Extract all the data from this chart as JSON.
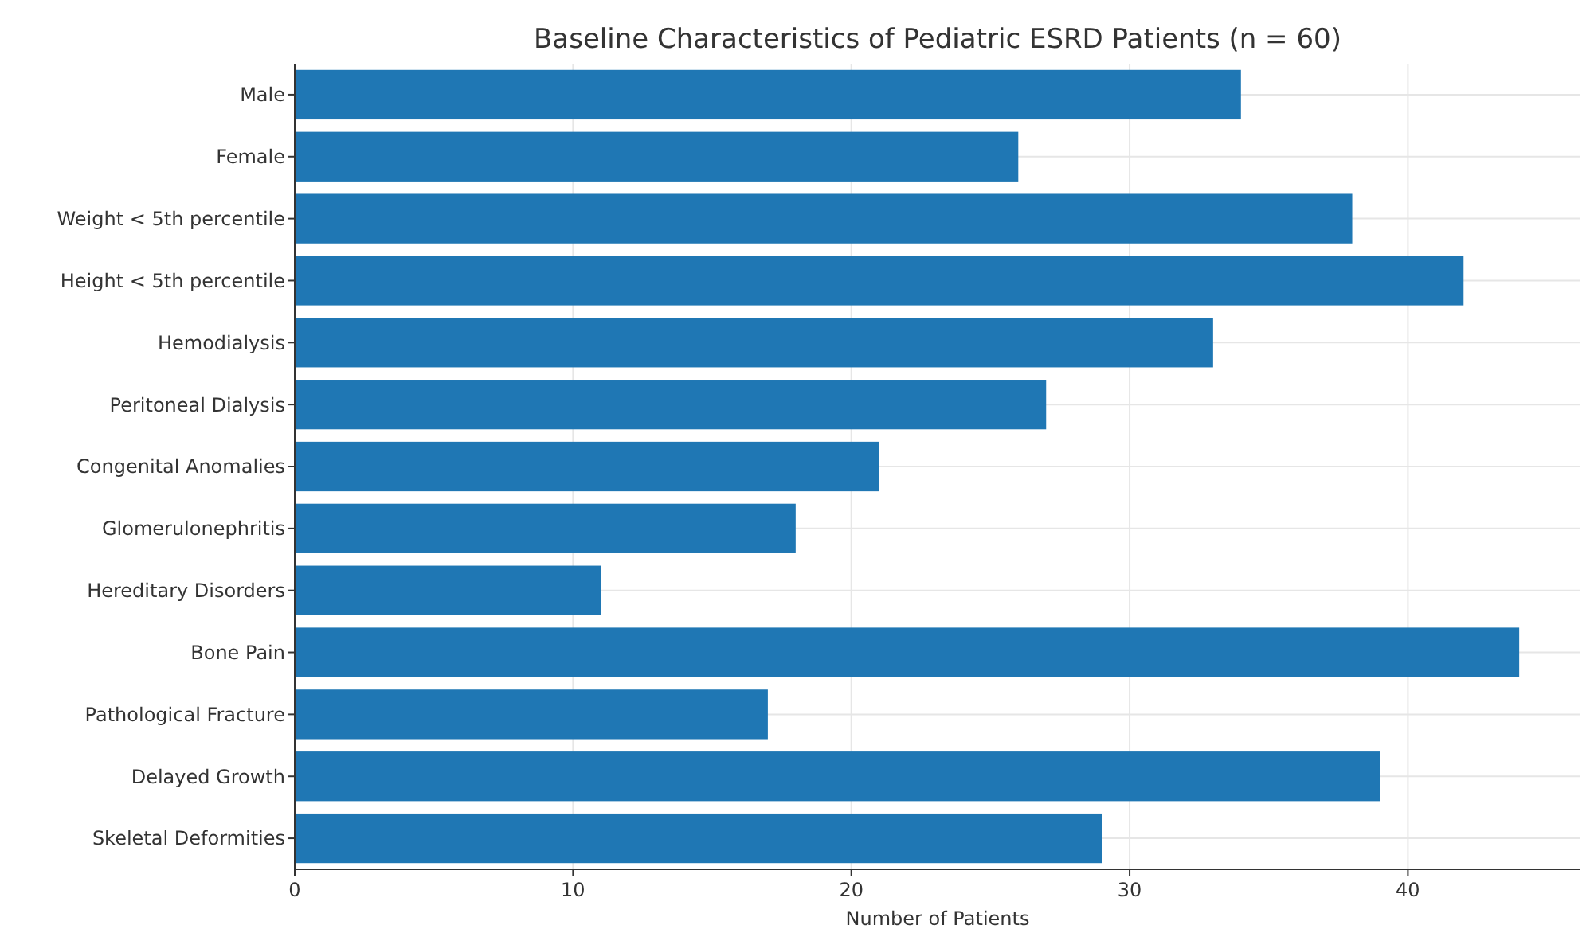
{
  "chart_data": {
    "type": "bar",
    "orientation": "horizontal",
    "title": "Baseline Characteristics of Pediatric ESRD Patients (n = 60)",
    "xlabel": "Number of Patients",
    "categories": [
      "Male",
      "Female",
      "Weight < 5th percentile",
      "Height < 5th percentile",
      "Hemodialysis",
      "Peritoneal Dialysis",
      "Congenital Anomalies",
      "Glomerulonephritis",
      "Hereditary Disorders",
      "Bone Pain",
      "Pathological Fracture",
      "Delayed Growth",
      "Skeletal Deformities"
    ],
    "values": [
      34,
      26,
      38,
      42,
      33,
      27,
      21,
      18,
      11,
      44,
      17,
      39,
      29
    ],
    "color": "#1f77b4",
    "xlim": [
      0,
      46.2
    ],
    "xticks": [
      0,
      10,
      20,
      30,
      40
    ],
    "grid": true
  }
}
